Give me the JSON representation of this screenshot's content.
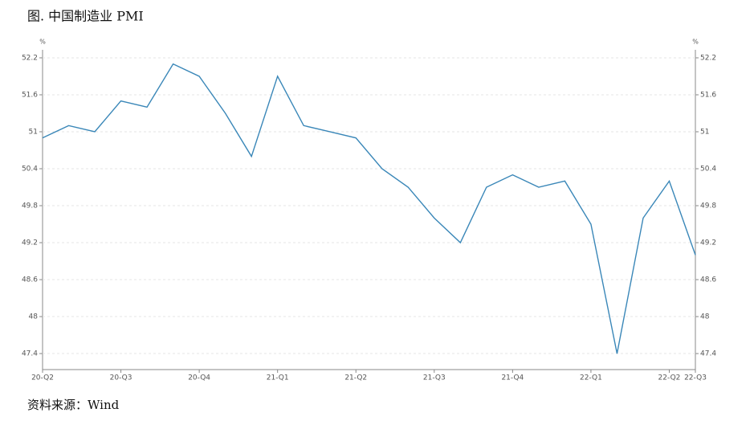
{
  "chart_data": {
    "type": "line",
    "title": "图. 中国制造业 PMI",
    "source": "资料来源：Wind",
    "y_unit": "%",
    "y2_unit": "%",
    "categories": [
      "20-Q2",
      null,
      null,
      "20-Q3",
      null,
      null,
      "20-Q4",
      null,
      null,
      "21-Q1",
      null,
      null,
      "21-Q2",
      null,
      null,
      "21-Q3",
      null,
      null,
      "21-Q4",
      null,
      null,
      "22-Q1",
      null,
      null,
      "22-Q2",
      "22-Q3"
    ],
    "series": [
      {
        "name": "PMI",
        "color": "#3a87b8",
        "values": [
          50.9,
          51.1,
          51.0,
          51.5,
          51.4,
          52.1,
          51.9,
          51.3,
          50.6,
          51.9,
          51.1,
          51.0,
          50.9,
          50.4,
          50.1,
          49.6,
          49.2,
          50.1,
          50.3,
          50.1,
          50.2,
          49.5,
          47.4,
          49.6,
          50.2,
          49.0
        ]
      }
    ],
    "ylim": [
      47.14,
      52.33
    ],
    "yticks": [
      47.4,
      48,
      48.6,
      49.2,
      49.8,
      50.4,
      51,
      51.6,
      52.2
    ],
    "y2lim": [
      47.14,
      52.33
    ],
    "y2ticks": [
      47.4,
      48,
      48.6,
      49.2,
      49.8,
      50.4,
      51,
      51.6,
      52.2
    ],
    "grid": true
  }
}
